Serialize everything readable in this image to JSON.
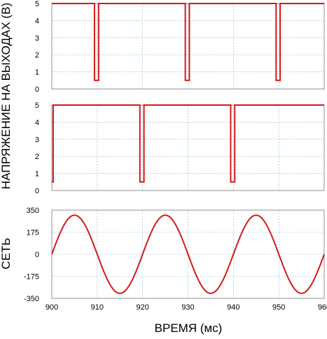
{
  "chart_data": [
    {
      "type": "line",
      "xlim": [
        900,
        960
      ],
      "ylim": [
        0,
        5
      ],
      "yticks": [
        "0",
        "1",
        "2",
        "3",
        "4",
        "5"
      ],
      "grid": true,
      "series": [
        {
          "color": "#d21a1a",
          "x": [
            900,
            909.4,
            909.4,
            910.3,
            910.3,
            929.4,
            929.4,
            930.3,
            930.3,
            949.4,
            949.4,
            950.3,
            950.3,
            960
          ],
          "y": [
            5,
            5,
            0.5,
            0.5,
            5,
            5,
            0.5,
            0.5,
            5,
            5,
            0.5,
            0.5,
            5,
            5
          ]
        }
      ]
    },
    {
      "type": "line",
      "xlim": [
        900,
        960
      ],
      "ylim": [
        0,
        5
      ],
      "yticks": [
        "0",
        "1",
        "2",
        "3",
        "4",
        "5"
      ],
      "grid": true,
      "series": [
        {
          "color": "#d21a1a",
          "x": [
            900,
            900.3,
            900.3,
            919.4,
            919.4,
            920.3,
            920.3,
            939.4,
            939.4,
            940.3,
            940.3,
            960
          ],
          "y": [
            0.5,
            0.5,
            5,
            5,
            0.5,
            0.5,
            5,
            5,
            0.5,
            0.5,
            5,
            5
          ]
        }
      ]
    },
    {
      "type": "line",
      "xlim": [
        900,
        960
      ],
      "ylim": [
        -350,
        350
      ],
      "yticks": [
        "350",
        "175",
        "0",
        "-175",
        "-350"
      ],
      "xticks": [
        "900",
        "910",
        "920",
        "930",
        "940",
        "950",
        "960"
      ],
      "xlabel": "ВРЕМЯ (мс)",
      "ylabel": "СЕТЬ",
      "grid": true,
      "series": [
        {
          "color": "#d21a1a",
          "function": "sine",
          "amplitude": 310,
          "period": 20,
          "x_start": 900,
          "x_end": 960
        }
      ]
    }
  ],
  "labels": {
    "shared_ylabel_top": "НАПРЯЖЕНИЕ НА ВЫХОДАХ (В)",
    "ylabel_bottom": "СЕТЬ",
    "xlabel": "ВРЕМЯ (мс)"
  }
}
